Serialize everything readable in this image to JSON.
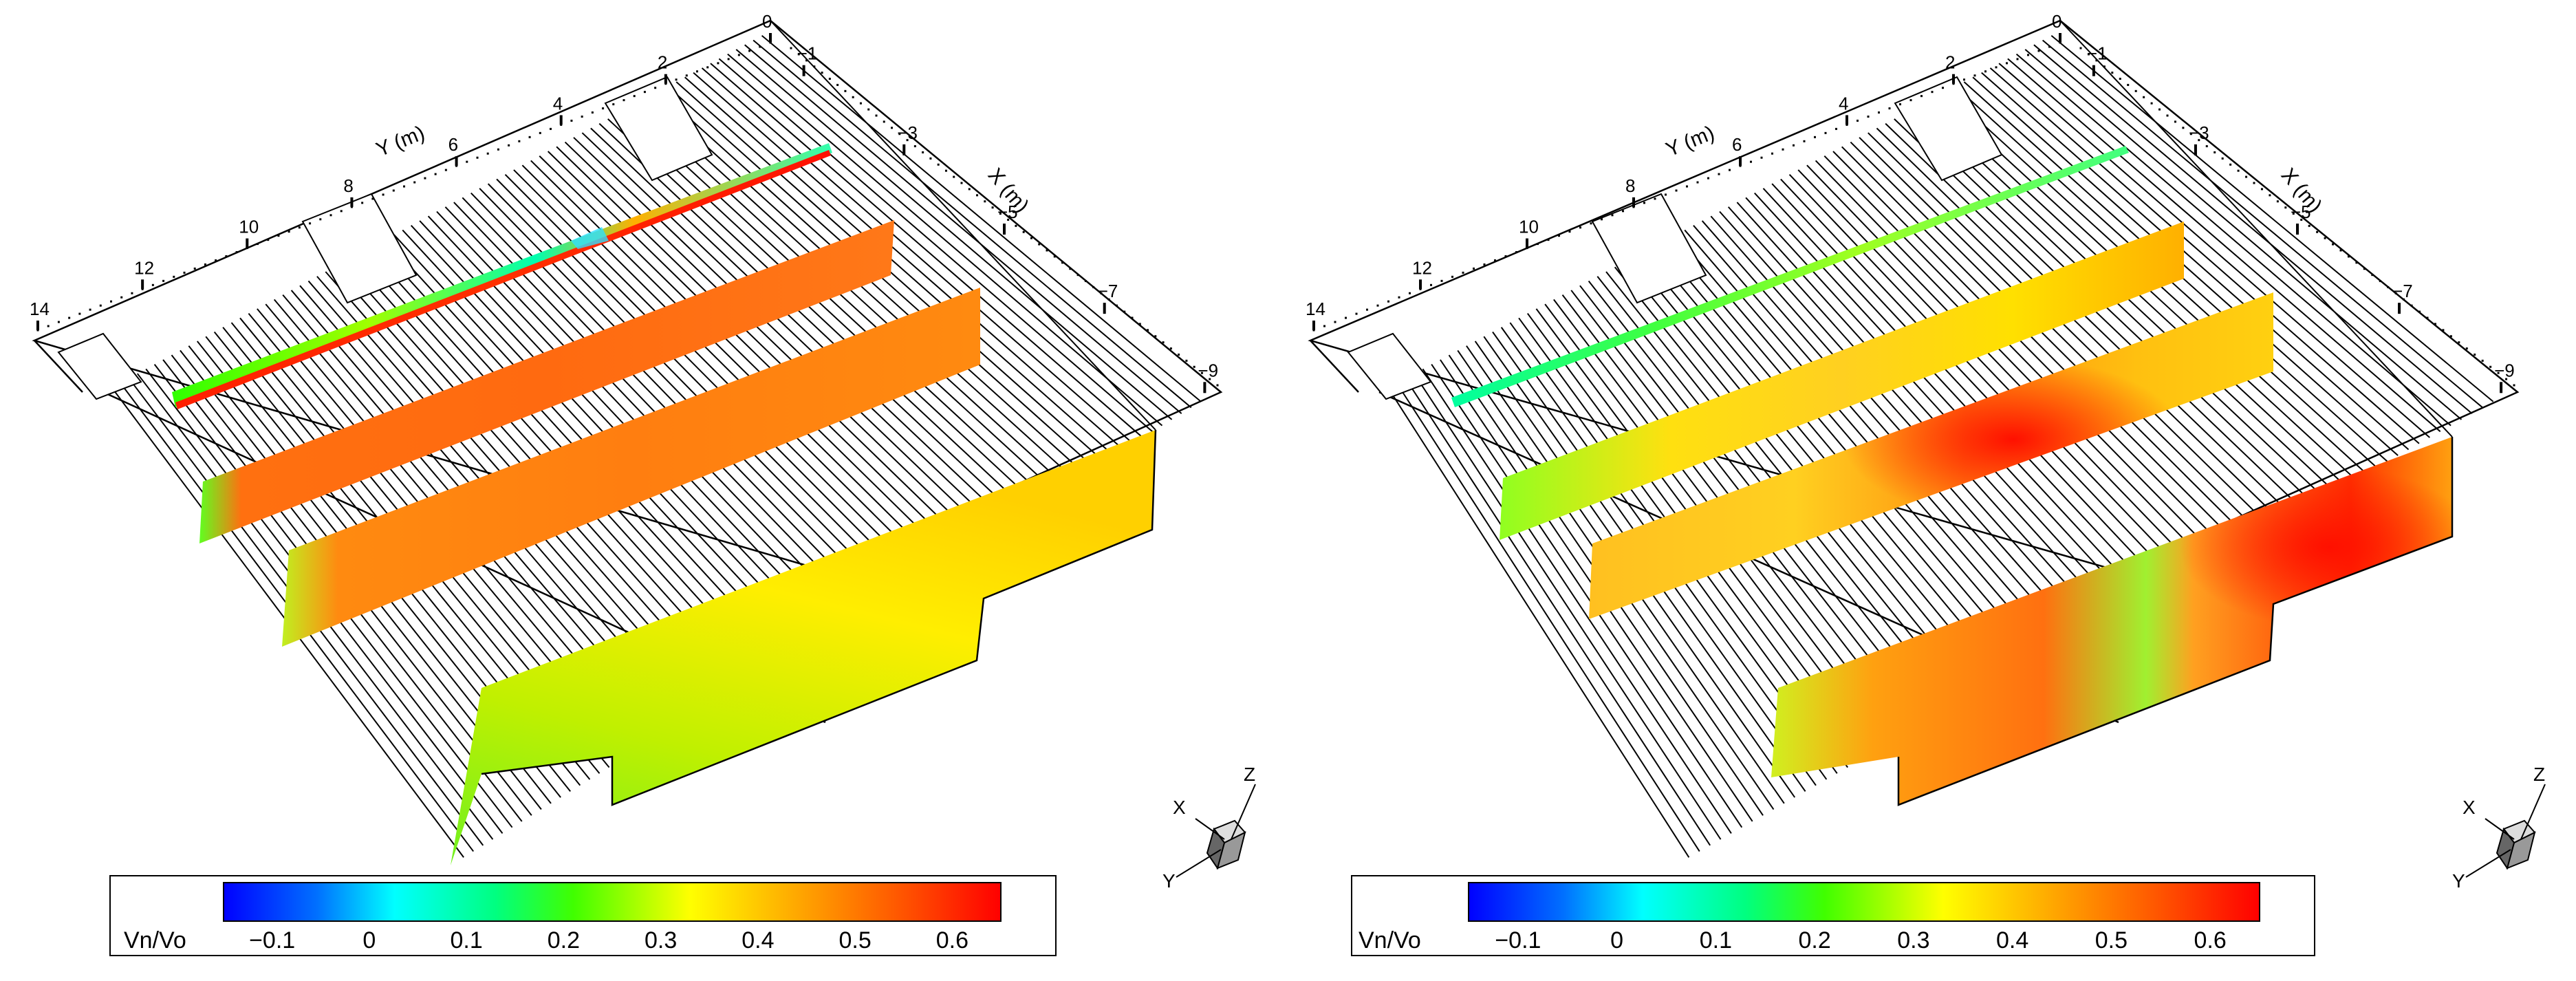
{
  "panels": [
    {
      "id": "left",
      "y_axis_title": "Y (m)",
      "x_axis_title": "X (m)",
      "y_ticks": [
        "0",
        "2",
        "4",
        "6",
        "8",
        "10",
        "12",
        "14"
      ],
      "x_ticks": [
        "−1",
        "−3",
        "−5",
        "−7",
        "−9"
      ],
      "colorbar": {
        "title": "Vn/Vo",
        "labels": [
          "−0.1",
          "0",
          "0.1",
          "0.2",
          "0.3",
          "0.4",
          "0.5",
          "0.6"
        ]
      },
      "triad": {
        "x": "X",
        "y": "Y",
        "z": "Z"
      }
    },
    {
      "id": "right",
      "y_axis_title": "Y (m)",
      "x_axis_title": "X (m)",
      "y_ticks": [
        "0",
        "2",
        "4",
        "6",
        "8",
        "10",
        "12",
        "14"
      ],
      "x_ticks": [
        "−1",
        "−3",
        "−5",
        "−7",
        "−9"
      ],
      "colorbar": {
        "title": "Vn/Vo",
        "labels": [
          "−0.1",
          "0",
          "0.1",
          "0.2",
          "0.3",
          "0.4",
          "0.5",
          "0.6"
        ]
      },
      "triad": {
        "x": "X",
        "y": "Y",
        "z": "Z"
      }
    }
  ],
  "colors": {
    "colormap": [
      "#0000ff",
      "#00a0ff",
      "#00ffff",
      "#00ff80",
      "#40ff00",
      "#c0ff00",
      "#ffff00",
      "#ffc000",
      "#ff8000",
      "#ff4000",
      "#ff0000"
    ],
    "line": "#000000",
    "background": "#ffffff"
  }
}
